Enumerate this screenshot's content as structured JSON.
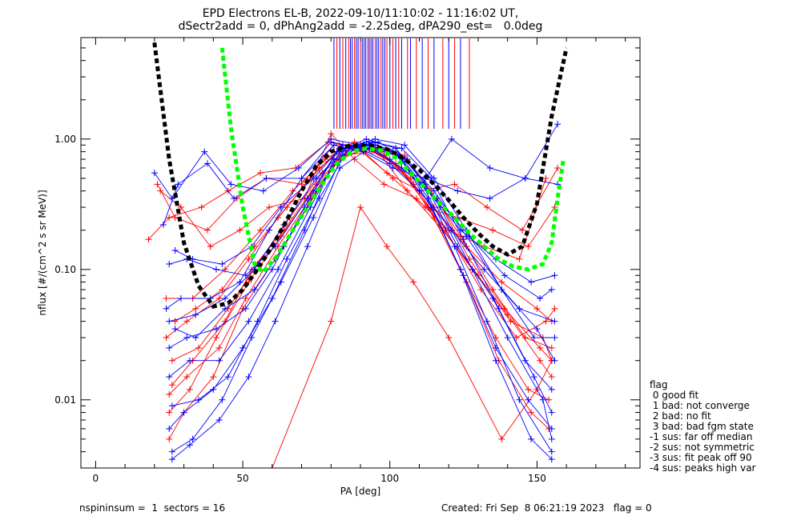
{
  "title": {
    "line1": "EPD Electrons EL-B, 2022-09-10/11:10:02 - 11:16:02 UT,",
    "line2": "dSectr2add = 0, dPhAng2add = -2.25deg, dPA290_est=   0.0deg"
  },
  "footer": {
    "left": "nspininsum =  1  sectors = 16",
    "right": "Created: Fri Sep  8 06:21:19 2023   flag = 0"
  },
  "legend": {
    "title": "flag",
    "items": [
      " 0 good fit",
      " 1 bad: not converge",
      " 2 bad: no fit",
      " 3 bad: bad fgm state",
      "-1 sus: far off median",
      "-2 sus: not symmetric",
      "-3 sus: fit peak off 90",
      "-4 sus: peaks high var"
    ]
  },
  "chart_data": {
    "type": "line",
    "xlabel": "PA [deg]",
    "ylabel": "nflux [#/(cm^2 s sr MeV)]",
    "xlim": [
      -5,
      185
    ],
    "ylim": [
      0.003,
      6.0
    ],
    "yscale": "log",
    "xticks": [
      "0",
      "50",
      "100",
      "150"
    ],
    "xtick_values": [
      0,
      50,
      100,
      150
    ],
    "yticks": [
      "0.01",
      "0.10",
      "1.00"
    ],
    "ytick_values": [
      0.01,
      0.1,
      1.0
    ],
    "colors": {
      "red": "#ff0000",
      "blue": "#0000ff",
      "fit_black": "#000000",
      "fit_green": "#00ff00"
    },
    "fit_black": {
      "x": [
        20,
        25,
        30,
        35,
        40,
        45,
        50,
        55,
        60,
        65,
        70,
        75,
        80,
        85,
        90,
        95,
        100,
        105,
        110,
        115,
        120,
        125,
        130,
        135,
        140,
        145,
        150,
        155,
        160
      ],
      "y": [
        5.5,
        0.7,
        0.16,
        0.075,
        0.052,
        0.055,
        0.07,
        0.1,
        0.15,
        0.24,
        0.4,
        0.62,
        0.8,
        0.88,
        0.9,
        0.88,
        0.82,
        0.7,
        0.58,
        0.45,
        0.34,
        0.25,
        0.19,
        0.15,
        0.13,
        0.15,
        0.32,
        1.5,
        5.0
      ]
    },
    "fit_green": {
      "x": [
        43,
        46,
        50,
        54,
        57,
        62,
        67,
        72,
        77,
        82,
        87,
        92,
        97,
        102,
        107,
        112,
        117,
        122,
        127,
        132,
        137,
        142,
        147,
        152,
        155,
        157,
        159
      ],
      "y": [
        5.0,
        1.2,
        0.3,
        0.11,
        0.095,
        0.13,
        0.2,
        0.3,
        0.45,
        0.65,
        0.8,
        0.85,
        0.82,
        0.72,
        0.55,
        0.42,
        0.32,
        0.25,
        0.19,
        0.15,
        0.12,
        0.105,
        0.1,
        0.11,
        0.16,
        0.35,
        0.7
      ]
    },
    "series": [
      {
        "color": "red",
        "x": [
          18,
          25,
          36,
          45,
          56,
          68,
          79,
          89,
          99,
          110,
          122,
          133,
          145,
          157
        ],
        "y": [
          0.17,
          0.25,
          0.3,
          0.4,
          0.55,
          0.6,
          0.95,
          0.85,
          0.55,
          0.4,
          0.45,
          0.3,
          0.2,
          0.6
        ]
      },
      {
        "color": "red",
        "x": [
          21,
          27,
          38,
          48,
          58,
          70,
          81,
          91,
          101,
          112,
          123,
          135,
          147,
          156
        ],
        "y": [
          0.45,
          0.25,
          0.2,
          0.35,
          0.5,
          0.45,
          0.9,
          0.8,
          0.5,
          0.3,
          0.25,
          0.2,
          0.15,
          0.3
        ]
      },
      {
        "color": "red",
        "x": [
          24,
          31,
          42,
          52,
          62,
          73,
          83,
          93,
          103,
          115,
          126,
          138,
          150,
          155
        ],
        "y": [
          0.03,
          0.04,
          0.06,
          0.12,
          0.25,
          0.5,
          0.85,
          0.9,
          0.6,
          0.3,
          0.15,
          0.08,
          0.05,
          0.04
        ]
      },
      {
        "color": "red",
        "x": [
          26,
          33,
          44,
          53,
          64,
          75,
          85,
          95,
          105,
          116,
          127,
          139,
          151,
          155
        ],
        "y": [
          0.013,
          0.02,
          0.04,
          0.1,
          0.2,
          0.45,
          0.8,
          0.85,
          0.7,
          0.35,
          0.12,
          0.05,
          0.025,
          0.02
        ]
      },
      {
        "color": "red",
        "x": [
          25,
          32,
          41,
          52,
          63,
          74,
          84,
          94,
          104,
          115,
          126,
          137,
          148,
          154
        ],
        "y": [
          0.008,
          0.012,
          0.03,
          0.08,
          0.18,
          0.4,
          0.75,
          0.8,
          0.6,
          0.25,
          0.08,
          0.02,
          0.008,
          0.006
        ]
      },
      {
        "color": "red",
        "x": [
          27,
          34,
          43,
          54,
          65,
          76,
          86,
          96,
          106,
          118,
          130,
          141,
          152,
          155
        ],
        "y": [
          0.04,
          0.05,
          0.07,
          0.15,
          0.3,
          0.6,
          0.9,
          0.8,
          0.4,
          0.2,
          0.09,
          0.04,
          0.03,
          0.02
        ]
      },
      {
        "color": "red",
        "x": [
          25,
          30,
          40,
          50,
          61,
          72,
          82,
          92,
          102,
          113,
          124,
          136,
          147,
          154
        ],
        "y": [
          0.005,
          0.008,
          0.015,
          0.05,
          0.12,
          0.3,
          0.7,
          0.85,
          0.65,
          0.3,
          0.1,
          0.03,
          0.012,
          0.01
        ]
      },
      {
        "color": "red",
        "x": [
          60,
          80,
          90,
          99,
          108,
          120,
          138,
          150,
          155
        ],
        "y": [
          0.003,
          0.04,
          0.3,
          0.15,
          0.08,
          0.03,
          0.005,
          0.012,
          0.02
        ]
      },
      {
        "color": "red",
        "x": [
          22,
          29,
          39,
          49,
          59,
          71,
          80,
          88,
          98,
          109,
          120,
          132,
          144,
          153
        ],
        "y": [
          0.4,
          0.3,
          0.15,
          0.2,
          0.3,
          0.35,
          1.1,
          0.7,
          0.45,
          0.35,
          0.2,
          0.15,
          0.12,
          0.5
        ]
      },
      {
        "color": "red",
        "x": [
          26,
          35,
          45,
          55,
          66,
          77,
          87,
          97,
          107,
          117,
          128,
          140,
          151,
          155
        ],
        "y": [
          0.02,
          0.025,
          0.05,
          0.11,
          0.25,
          0.55,
          0.85,
          0.8,
          0.5,
          0.22,
          0.1,
          0.045,
          0.02,
          0.015
        ]
      },
      {
        "color": "red",
        "x": [
          25,
          31,
          42,
          51,
          62,
          73,
          83,
          95,
          105,
          114,
          124,
          135,
          146,
          155
        ],
        "y": [
          0.011,
          0.015,
          0.025,
          0.06,
          0.15,
          0.35,
          0.7,
          0.9,
          0.75,
          0.4,
          0.18,
          0.07,
          0.03,
          0.025
        ]
      },
      {
        "color": "red",
        "x": [
          24,
          33,
          44,
          56,
          67,
          78,
          88,
          98,
          108,
          119,
          131,
          143,
          153,
          156
        ],
        "y": [
          0.06,
          0.06,
          0.1,
          0.2,
          0.4,
          0.7,
          0.95,
          0.75,
          0.45,
          0.2,
          0.07,
          0.03,
          0.04,
          0.05
        ]
      },
      {
        "color": "blue",
        "x": [
          20,
          26,
          37,
          46,
          57,
          69,
          80,
          90,
          100,
          111,
          121,
          134,
          146,
          157
        ],
        "y": [
          0.55,
          0.35,
          0.8,
          0.45,
          0.4,
          0.6,
          1.0,
          0.9,
          0.7,
          0.45,
          1.0,
          0.6,
          0.5,
          1.3
        ]
      },
      {
        "color": "blue",
        "x": [
          23,
          28,
          38,
          47,
          58,
          70,
          81,
          91,
          101,
          112,
          123,
          134,
          146,
          157
        ],
        "y": [
          0.22,
          0.45,
          0.65,
          0.35,
          0.5,
          0.5,
          0.9,
          0.8,
          0.6,
          0.5,
          0.4,
          0.35,
          0.5,
          0.45
        ]
      },
      {
        "color": "blue",
        "x": [
          25,
          31,
          41,
          51,
          61,
          72,
          82,
          92,
          102,
          113,
          124,
          136,
          148,
          156
        ],
        "y": [
          0.11,
          0.12,
          0.1,
          0.09,
          0.15,
          0.35,
          0.8,
          0.95,
          0.8,
          0.4,
          0.2,
          0.12,
          0.08,
          0.09
        ]
      },
      {
        "color": "blue",
        "x": [
          25,
          30,
          40,
          50,
          60,
          71,
          81,
          91,
          101,
          111,
          122,
          133,
          144,
          155
        ],
        "y": [
          0.006,
          0.008,
          0.012,
          0.025,
          0.06,
          0.2,
          0.7,
          0.9,
          0.8,
          0.45,
          0.15,
          0.04,
          0.01,
          0.004
        ]
      },
      {
        "color": "blue",
        "x": [
          26,
          33,
          43,
          53,
          63,
          74,
          84,
          94,
          104,
          114,
          125,
          137,
          149,
          155
        ],
        "y": [
          0.004,
          0.005,
          0.01,
          0.03,
          0.08,
          0.25,
          0.75,
          0.95,
          0.85,
          0.5,
          0.17,
          0.05,
          0.015,
          0.008
        ]
      },
      {
        "color": "blue",
        "x": [
          27,
          34,
          44,
          54,
          64,
          75,
          85,
          95,
          105,
          115,
          126,
          138,
          150,
          156
        ],
        "y": [
          0.035,
          0.03,
          0.05,
          0.07,
          0.15,
          0.4,
          0.85,
          1.0,
          0.9,
          0.5,
          0.2,
          0.07,
          0.035,
          0.02
        ]
      },
      {
        "color": "blue",
        "x": [
          25,
          32,
          42,
          52,
          62,
          73,
          83,
          93,
          103,
          114,
          125,
          136,
          147,
          155
        ],
        "y": [
          0.015,
          0.02,
          0.02,
          0.04,
          0.1,
          0.3,
          0.8,
          0.9,
          0.75,
          0.3,
          0.09,
          0.025,
          0.01,
          0.006
        ]
      },
      {
        "color": "blue",
        "x": [
          24,
          29,
          39,
          49,
          59,
          70,
          80,
          90,
          100,
          110,
          121,
          132,
          144,
          156
        ],
        "y": [
          0.05,
          0.06,
          0.06,
          0.08,
          0.2,
          0.5,
          0.95,
          0.85,
          0.65,
          0.4,
          0.2,
          0.1,
          0.05,
          0.04
        ]
      },
      {
        "color": "blue",
        "x": [
          26,
          35,
          45,
          55,
          65,
          76,
          86,
          96,
          106,
          117,
          128,
          140,
          152,
          155
        ],
        "y": [
          0.009,
          0.01,
          0.015,
          0.04,
          0.12,
          0.35,
          0.85,
          0.95,
          0.7,
          0.3,
          0.1,
          0.03,
          0.01,
          0.005
        ]
      },
      {
        "color": "blue",
        "x": [
          25,
          31,
          41,
          51,
          60,
          71,
          82,
          92,
          102,
          112,
          123,
          135,
          146,
          155
        ],
        "y": [
          0.025,
          0.03,
          0.035,
          0.05,
          0.1,
          0.3,
          0.8,
          1.0,
          0.85,
          0.45,
          0.15,
          0.06,
          0.02,
          0.012
        ]
      },
      {
        "color": "blue",
        "x": [
          27,
          33,
          43,
          53,
          63,
          74,
          84,
          94,
          104,
          116,
          127,
          139,
          151,
          155
        ],
        "y": [
          0.14,
          0.12,
          0.11,
          0.15,
          0.3,
          0.5,
          0.9,
          0.85,
          0.6,
          0.35,
          0.18,
          0.09,
          0.06,
          0.07
        ]
      },
      {
        "color": "blue",
        "x": [
          26,
          32,
          42,
          52,
          61,
          72,
          83,
          93,
          103,
          113,
          124,
          136,
          148,
          155
        ],
        "y": [
          0.0035,
          0.0045,
          0.007,
          0.015,
          0.04,
          0.15,
          0.6,
          0.85,
          0.75,
          0.35,
          0.1,
          0.02,
          0.005,
          0.0035
        ]
      },
      {
        "color": "blue",
        "x": [
          25,
          34,
          44,
          54,
          64,
          75,
          85,
          95,
          105,
          115,
          126,
          138,
          149,
          156
        ],
        "y": [
          0.04,
          0.045,
          0.06,
          0.1,
          0.22,
          0.5,
          0.85,
          0.9,
          0.7,
          0.4,
          0.18,
          0.07,
          0.03,
          0.03
        ]
      }
    ],
    "top_ticks": [
      {
        "color": "blue",
        "x": 81
      },
      {
        "color": "red",
        "x": 82
      },
      {
        "color": "blue",
        "x": 83
      },
      {
        "color": "red",
        "x": 84
      },
      {
        "color": "blue",
        "x": 85
      },
      {
        "color": "red",
        "x": 86
      },
      {
        "color": "blue",
        "x": 86.6
      },
      {
        "color": "blue",
        "x": 87.2
      },
      {
        "color": "red",
        "x": 88
      },
      {
        "color": "blue",
        "x": 88.6
      },
      {
        "color": "blue",
        "x": 89.2
      },
      {
        "color": "red",
        "x": 90
      },
      {
        "color": "blue",
        "x": 90.6
      },
      {
        "color": "blue",
        "x": 91.2
      },
      {
        "color": "blue",
        "x": 91.8
      },
      {
        "color": "red",
        "x": 92.5
      },
      {
        "color": "blue",
        "x": 93
      },
      {
        "color": "blue",
        "x": 93.6
      },
      {
        "color": "blue",
        "x": 94.2
      },
      {
        "color": "red",
        "x": 95
      },
      {
        "color": "blue",
        "x": 95.6
      },
      {
        "color": "blue",
        "x": 96.2
      },
      {
        "color": "red",
        "x": 97
      },
      {
        "color": "blue",
        "x": 97.6
      },
      {
        "color": "blue",
        "x": 98.3
      },
      {
        "color": "red",
        "x": 99
      },
      {
        "color": "blue",
        "x": 100
      },
      {
        "color": "red",
        "x": 101
      },
      {
        "color": "blue",
        "x": 102
      },
      {
        "color": "red",
        "x": 103
      },
      {
        "color": "blue",
        "x": 104
      },
      {
        "color": "red",
        "x": 106
      },
      {
        "color": "blue",
        "x": 107
      },
      {
        "color": "red",
        "x": 109
      },
      {
        "color": "blue",
        "x": 111
      },
      {
        "color": "red",
        "x": 113
      },
      {
        "color": "blue",
        "x": 115
      },
      {
        "color": "red",
        "x": 118
      },
      {
        "color": "blue",
        "x": 120
      },
      {
        "color": "red",
        "x": 122
      },
      {
        "color": "blue",
        "x": 124
      },
      {
        "color": "red",
        "x": 127
      }
    ]
  }
}
